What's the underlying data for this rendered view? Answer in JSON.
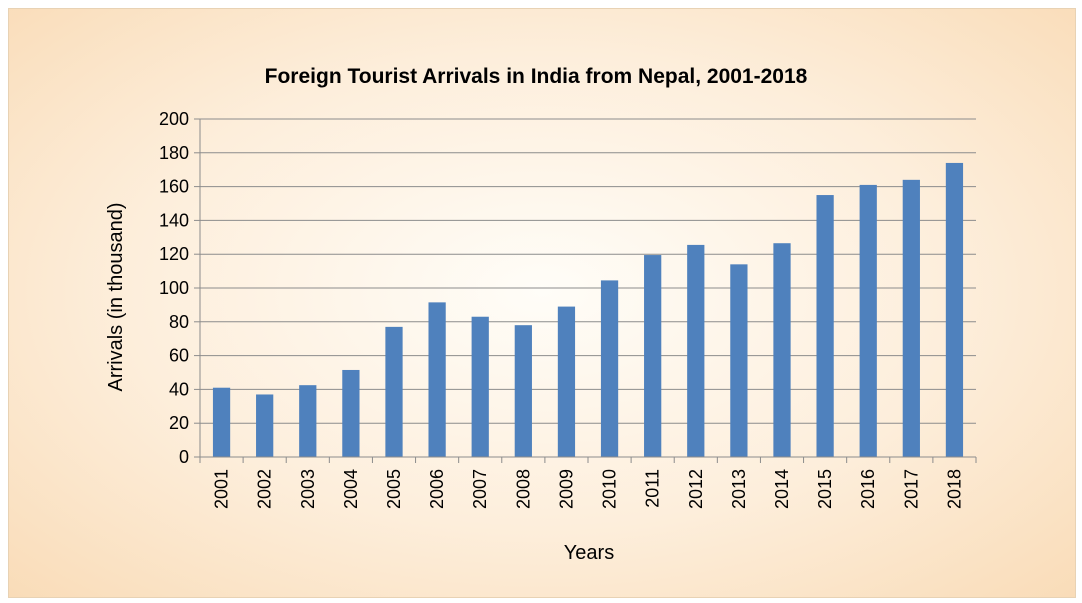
{
  "chart_data": {
    "type": "bar",
    "title": "Foreign Tourist Arrivals in India from Nepal, 2001-2018",
    "xlabel": "Years",
    "ylabel": "Arrivals (in thousand)",
    "categories": [
      "2001",
      "2002",
      "2003",
      "2004",
      "2005",
      "2006",
      "2007",
      "2008",
      "2009",
      "2010",
      "2011",
      "2012",
      "2013",
      "2014",
      "2015",
      "2016",
      "2017",
      "2018"
    ],
    "values": [
      41,
      37,
      42.5,
      51.5,
      77,
      91.5,
      83,
      78,
      89,
      104.5,
      119.5,
      125.5,
      114,
      126.5,
      155,
      161,
      164,
      174
    ],
    "ylim": [
      0,
      200
    ],
    "yticks": [
      "0",
      "20",
      "40",
      "60",
      "80",
      "100",
      "120",
      "140",
      "160",
      "180",
      "200"
    ],
    "grid": true,
    "legend": "none",
    "colors": {
      "bar": "#4f81bd",
      "grid": "#8c8c8c",
      "axis": "#8c8c8c"
    }
  }
}
